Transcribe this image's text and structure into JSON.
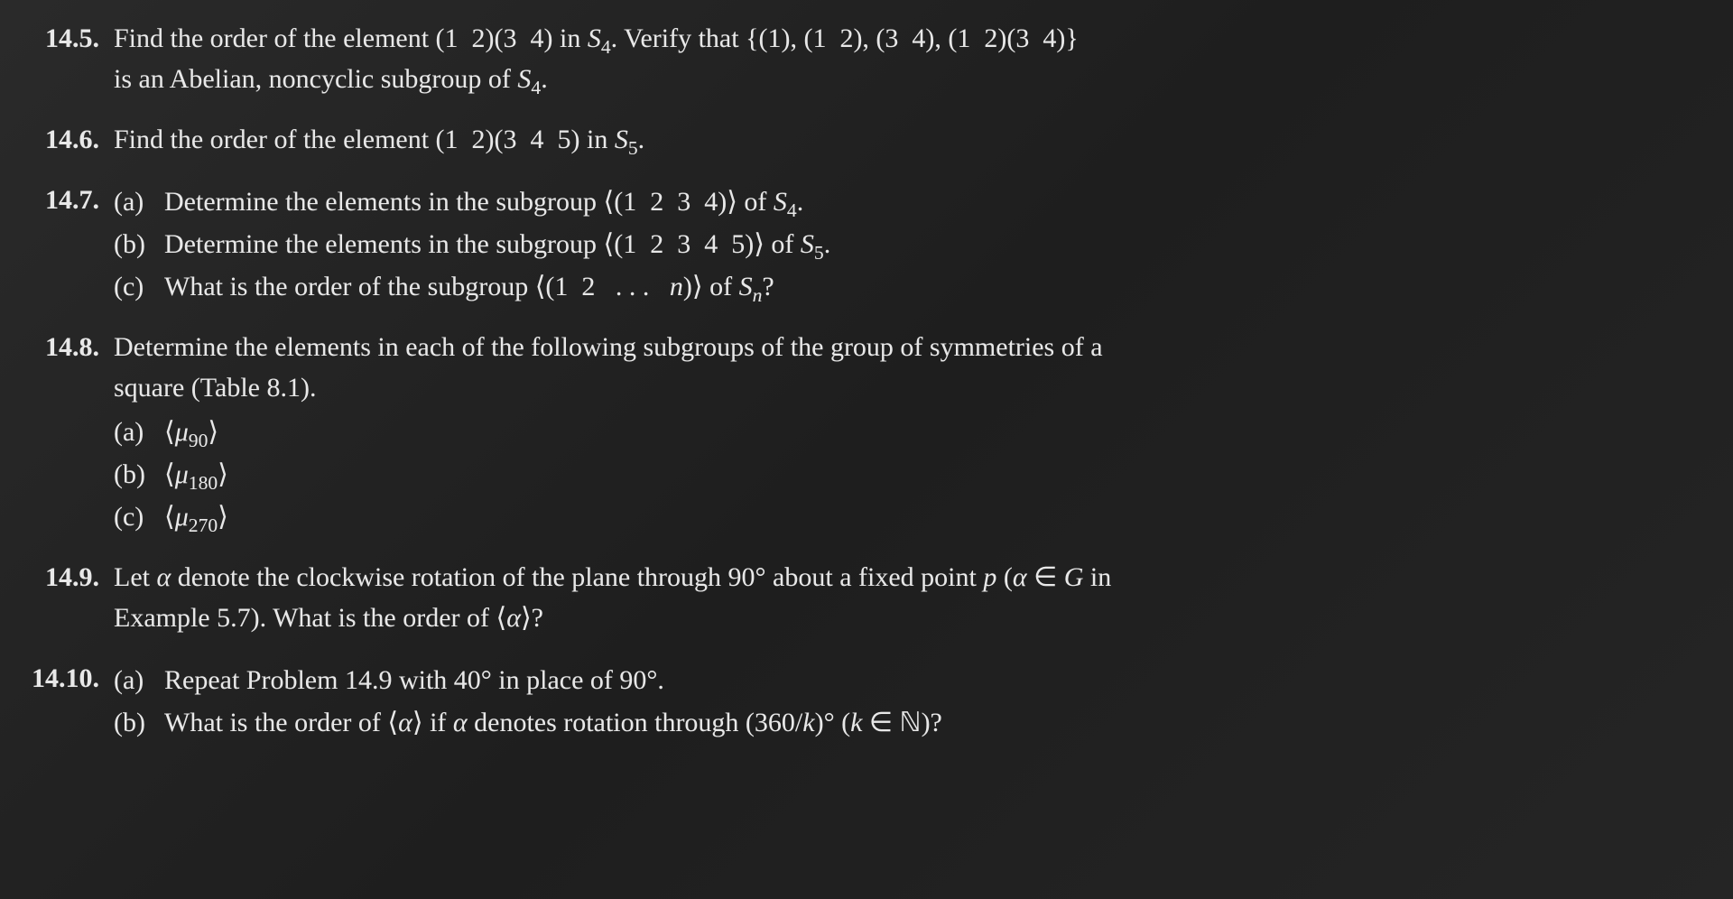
{
  "font": {
    "family": "Times New Roman",
    "size_pt": 30,
    "color": "#e8e8e8",
    "weight_bold_numbers": true
  },
  "background": {
    "gradient": [
      "#2a2a2a",
      "#1e1e1e",
      "#252525"
    ]
  },
  "problems": {
    "p145": {
      "num": "14.5.",
      "text_l1": "Find the order of the element (1  2)(3  4) in S₄. Verify that {(1), (1  2), (3  4), (1  2)(3  4)}",
      "text_l2": "is an Abelian, noncyclic subgroup of S₄."
    },
    "p146": {
      "num": "14.6.",
      "text": "Find the order of the element (1  2)(3  4  5) in S₅."
    },
    "p147": {
      "num": "14.7.",
      "a_label": "(a)",
      "a_text": "Determine the elements in the subgroup ⟨(1  2  3  4)⟩ of S₄.",
      "b_label": "(b)",
      "b_text": "Determine the elements in the subgroup ⟨(1  2  3  4  5)⟩ of S₅.",
      "c_label": "(c)",
      "c_text": "What is the order of the subgroup ⟨(1  2   . . .   n)⟩ of Sₙ?"
    },
    "p148": {
      "num": "14.8.",
      "intro_l1": "Determine the elements in each of the following subgroups of the group of symmetries of a",
      "intro_l2": "square (Table 8.1).",
      "a_label": "(a)",
      "a_text": "⟨μ₉₀⟩",
      "b_label": "(b)",
      "b_text": "⟨μ₁₈₀⟩",
      "c_label": "(c)",
      "c_text": "⟨μ₂₇₀⟩"
    },
    "p149": {
      "num": "14.9.",
      "text_l1": "Let α denote the clockwise rotation of the plane through 90° about a fixed point p (α ∈ G in",
      "text_l2": "Example 5.7). What is the order of ⟨α⟩?"
    },
    "p1410": {
      "num": "14.10.",
      "a_label": "(a)",
      "a_text": "Repeat Problem 14.9 with 40° in place of 90°.",
      "b_label": "(b)",
      "b_text": "What is the order of ⟨α⟩ if α denotes rotation through (360/k)° (k ∈ ℕ)?"
    }
  }
}
